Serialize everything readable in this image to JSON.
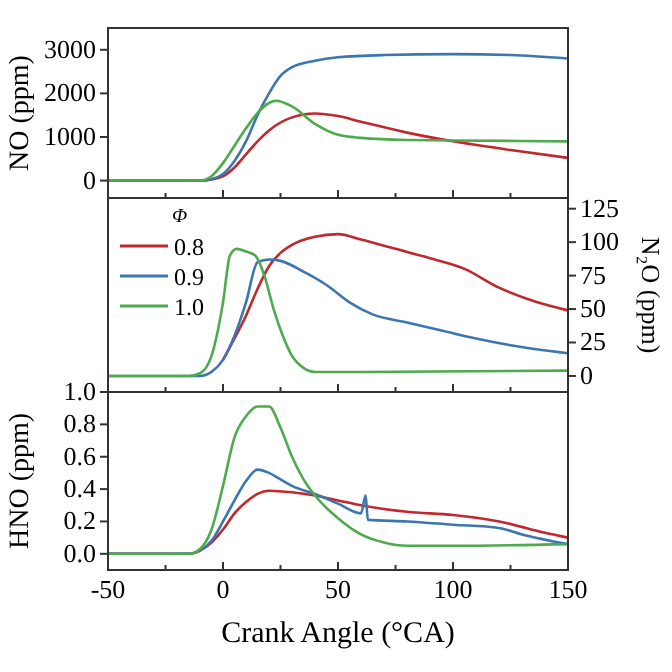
{
  "chart_data": [
    {
      "type": "line",
      "ylabel": "NO (ppm)",
      "xlim": [
        -50,
        150
      ],
      "xticks": [
        -50,
        {
          "value": -25,
          "label": null
        },
        0,
        {
          "value": 25,
          "label": null
        },
        50,
        {
          "value": 75,
          "label": null
        },
        100,
        {
          "value": 125,
          "label": null
        },
        150
      ],
      "ylim": [
        -400,
        3500
      ],
      "yticks": [
        0,
        1000,
        2000,
        3000
      ],
      "tick_labels": "y",
      "legend": false,
      "series": [
        {
          "color": "#c0282d",
          "x": [
            -50,
            -10,
            0,
            5,
            10,
            15,
            20,
            30,
            40,
            50,
            60,
            80,
            100,
            125,
            150
          ],
          "values": [
            0,
            0,
            100,
            300,
            600,
            900,
            1150,
            1450,
            1540,
            1480,
            1350,
            1100,
            900,
            700,
            520
          ]
        },
        {
          "color": "#3b76b0",
          "x": [
            -50,
            -10,
            -5,
            0,
            5,
            10,
            15,
            20,
            25,
            30,
            40,
            50,
            70,
            100,
            125,
            150
          ],
          "values": [
            0,
            0,
            30,
            150,
            450,
            900,
            1500,
            2000,
            2400,
            2600,
            2750,
            2830,
            2880,
            2900,
            2880,
            2800
          ]
        },
        {
          "color": "#4daa4d",
          "x": [
            -50,
            -10,
            -5,
            0,
            5,
            10,
            15,
            20,
            23,
            30,
            40,
            50,
            60,
            80,
            100,
            150
          ],
          "values": [
            0,
            0,
            100,
            400,
            800,
            1200,
            1550,
            1780,
            1830,
            1700,
            1300,
            1050,
            980,
            930,
            920,
            900
          ]
        }
      ]
    },
    {
      "type": "line",
      "y2label": "N₂O (ppm)",
      "legend_title": "Φ",
      "legend": "top left",
      "xlim": [
        -50,
        150
      ],
      "xticks": [
        -50,
        {
          "value": -25,
          "label": null
        },
        0,
        {
          "value": 25,
          "label": null
        },
        50,
        {
          "value": 75,
          "label": null
        },
        100,
        {
          "value": 125,
          "label": null
        },
        150
      ],
      "y2lim": [
        -12,
        133
      ],
      "y2ticks": [
        0,
        25,
        50,
        75,
        100,
        125
      ],
      "tick_labels": "y",
      "series": [
        {
          "name": "0.8",
          "color": "#c0282d",
          "axis": "y2",
          "x": [
            0,
            5,
            10,
            15,
            20,
            25,
            30,
            40,
            50,
            60,
            75,
            90,
            105,
            120,
            135,
            150
          ],
          "values": [
            12,
            28,
            45,
            65,
            82,
            92,
            98,
            104,
            106,
            102,
            95,
            88,
            80,
            66,
            56,
            49
          ]
        },
        {
          "name": "0.9",
          "color": "#3b76b0",
          "axis": "y2",
          "x": [
            -50,
            -10,
            -5,
            0,
            5,
            10,
            15,
            20,
            25,
            35,
            45,
            55,
            65,
            80,
            95,
            110,
            125,
            150
          ],
          "values": [
            0,
            0,
            3,
            12,
            30,
            55,
            85,
            87,
            86,
            78,
            68,
            55,
            46,
            40,
            34,
            28,
            23,
            17
          ]
        },
        {
          "name": "1.0",
          "color": "#4daa4d",
          "axis": "y2",
          "x": [
            -50,
            -15,
            -10,
            -5,
            0,
            3,
            6,
            10,
            14,
            18,
            22,
            26,
            30,
            35,
            40,
            60,
            150
          ],
          "values": [
            0,
            0,
            2,
            15,
            55,
            90,
            95,
            93,
            90,
            75,
            50,
            30,
            15,
            6,
            3,
            3,
            4
          ]
        }
      ]
    },
    {
      "type": "line",
      "ylabel": "HNO (ppm)",
      "xlabel": "Crank Angle (°CA)",
      "legend": false,
      "xlim": [
        -50,
        150
      ],
      "xticks": [
        -50,
        {
          "value": -25,
          "label": null
        },
        0,
        {
          "value": 25,
          "label": null
        },
        50,
        {
          "value": 75,
          "label": null
        },
        100,
        {
          "value": 125,
          "label": null
        },
        150
      ],
      "ylim": [
        -0.1,
        1.0
      ],
      "yticks": [
        {
          "value": 0,
          "label": "0.0"
        },
        {
          "value": 0.2,
          "label": "0.2"
        },
        {
          "value": 0.4,
          "label": "0.4"
        },
        {
          "value": 0.6,
          "label": "0.6"
        },
        {
          "value": 0.8,
          "label": "0.8"
        },
        {
          "value": 1,
          "label": "1.0"
        }
      ],
      "series": [
        {
          "color": "#c0282d",
          "x": [
            -50,
            -15,
            -10,
            -5,
            0,
            5,
            10,
            15,
            20,
            30,
            40,
            50,
            60,
            80,
            100,
            120,
            140,
            150
          ],
          "values": [
            0,
            0,
            0.02,
            0.07,
            0.15,
            0.25,
            0.32,
            0.37,
            0.39,
            0.38,
            0.36,
            0.33,
            0.3,
            0.26,
            0.24,
            0.2,
            0.13,
            0.1
          ]
        },
        {
          "color": "#3b76b0",
          "x": [
            -50,
            -15,
            -10,
            -5,
            0,
            5,
            10,
            15,
            20,
            25,
            30,
            40,
            50,
            60,
            62,
            63,
            80,
            100,
            120,
            130,
            150
          ],
          "values": [
            0,
            0,
            0.02,
            0.08,
            0.2,
            0.33,
            0.45,
            0.52,
            0.5,
            0.46,
            0.42,
            0.37,
            0.31,
            0.25,
            0.36,
            0.21,
            0.2,
            0.18,
            0.16,
            0.12,
            0.06
          ]
        },
        {
          "color": "#4daa4d",
          "x": [
            -50,
            -15,
            -10,
            -5,
            0,
            5,
            10,
            15,
            20,
            25,
            30,
            35,
            40,
            50,
            60,
            70,
            80,
            100,
            150
          ],
          "values": [
            0,
            0,
            0.03,
            0.15,
            0.42,
            0.72,
            0.85,
            0.91,
            0.91,
            0.78,
            0.6,
            0.46,
            0.36,
            0.22,
            0.12,
            0.07,
            0.05,
            0.05,
            0.06
          ]
        }
      ]
    }
  ]
}
